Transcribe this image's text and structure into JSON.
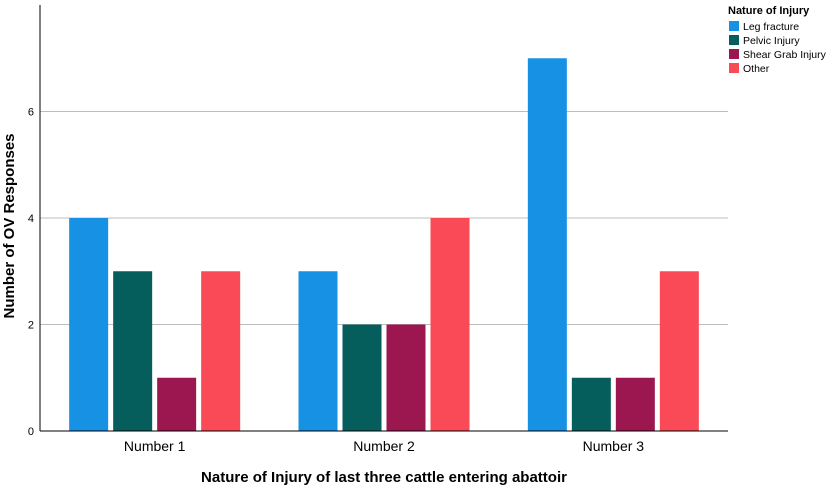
{
  "chart_data": {
    "type": "bar",
    "title": "",
    "xlabel": "Nature of Injury of last three cattle entering abattoir",
    "ylabel": "Number of OV Responses",
    "categories": [
      "Number 1",
      "Number 2",
      "Number 3"
    ],
    "ylim": [
      0,
      8
    ],
    "yticks": [
      0,
      2,
      4,
      6
    ],
    "grid": true,
    "legend": {
      "title": "Nature of Injury",
      "position": "top-right"
    },
    "series": [
      {
        "name": "Leg fracture",
        "color": "#1791e3",
        "values": [
          4,
          3,
          7
        ]
      },
      {
        "name": "Pelvic Injury",
        "color": "#055e5b",
        "values": [
          3,
          2,
          1
        ]
      },
      {
        "name": "Shear Grab Injury",
        "color": "#9c1750",
        "values": [
          1,
          2,
          1
        ]
      },
      {
        "name": "Other",
        "color": "#fb4a57",
        "values": [
          3,
          4,
          3
        ]
      }
    ]
  }
}
